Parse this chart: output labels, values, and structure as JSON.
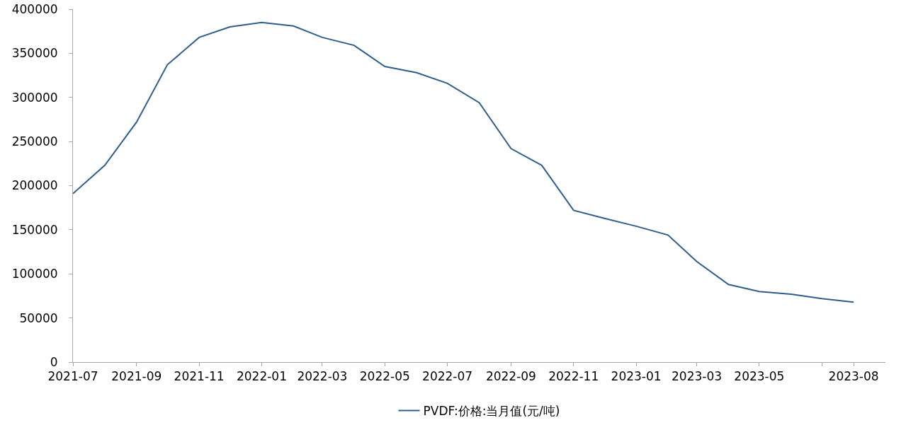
{
  "chart_data": {
    "type": "line",
    "x": [
      "2021-07",
      "2021-08",
      "2021-09",
      "2021-10",
      "2021-11",
      "2021-12",
      "2022-01",
      "2022-02",
      "2022-03",
      "2022-04",
      "2022-05",
      "2022-06",
      "2022-07",
      "2022-08",
      "2022-09",
      "2022-10",
      "2022-11",
      "2022-12",
      "2023-01",
      "2023-02",
      "2023-03",
      "2023-04",
      "2023-05",
      "2023-06",
      "2023-07",
      "2023-08"
    ],
    "series": [
      {
        "name": "PVDF:价格:当月值(元/吨)",
        "color": "#2f5d8c",
        "values": [
          191000,
          223000,
          272000,
          337000,
          368000,
          380000,
          385000,
          381000,
          368000,
          359000,
          335000,
          328000,
          316000,
          294000,
          242000,
          223000,
          172000,
          163000,
          154000,
          144000,
          114000,
          88000,
          80000,
          77000,
          72000,
          68000
        ]
      }
    ],
    "xlim": [
      "2021-07",
      "2023-09"
    ],
    "xticks": [
      "2021-07",
      "2021-09",
      "2021-11",
      "2022-01",
      "2022-03",
      "2022-05",
      "2022-07",
      "2022-09",
      "2022-11",
      "2023-01",
      "2023-03",
      "2023-05",
      {
        "value": "2023-07",
        "label": null
      },
      "2023-08"
    ],
    "ylim": [
      0,
      400000
    ],
    "yticks": [
      0,
      50000,
      100000,
      150000,
      200000,
      250000,
      300000,
      350000,
      400000
    ],
    "grid": false,
    "legend": "bottom"
  }
}
